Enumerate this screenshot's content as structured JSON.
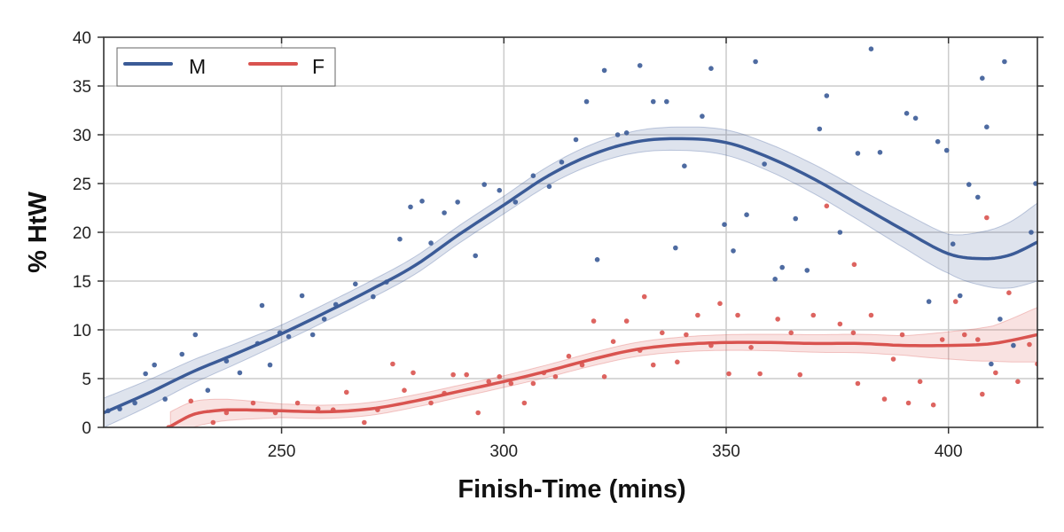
{
  "chart_data": {
    "type": "scatter",
    "title": "",
    "xlabel": "Finish-Time (mins)",
    "ylabel": "% HtW",
    "xlim": [
      210,
      420
    ],
    "ylim": [
      0,
      40
    ],
    "xticks": [
      250,
      300,
      350,
      400
    ],
    "yticks": [
      0,
      5,
      10,
      15,
      20,
      25,
      30,
      35,
      40
    ],
    "grid": true,
    "legend": {
      "placement": "top-left",
      "entries": [
        "M",
        "F"
      ]
    },
    "series": [
      {
        "name": "M",
        "color": "#3b5b97",
        "points": [
          [
            211,
            1.7
          ],
          [
            213.6,
            1.9
          ],
          [
            217,
            2.5
          ],
          [
            219.4,
            5.5
          ],
          [
            221.4,
            6.4
          ],
          [
            223.8,
            2.9
          ],
          [
            227.6,
            7.5
          ],
          [
            230.6,
            9.5
          ],
          [
            233.4,
            3.8
          ],
          [
            237.6,
            6.8
          ],
          [
            240.6,
            5.6
          ],
          [
            244.6,
            8.6
          ],
          [
            245.6,
            12.5
          ],
          [
            247.4,
            6.4
          ],
          [
            249.6,
            9.7
          ],
          [
            251.6,
            9.3
          ],
          [
            254.6,
            13.5
          ],
          [
            257,
            9.5
          ],
          [
            259.6,
            11.1
          ],
          [
            262.2,
            12.6
          ],
          [
            266.6,
            14.7
          ],
          [
            270.6,
            13.4
          ],
          [
            273.6,
            14.9
          ],
          [
            276.6,
            19.3
          ],
          [
            279,
            22.6
          ],
          [
            281.6,
            23.2
          ],
          [
            283.6,
            18.9
          ],
          [
            286.6,
            22
          ],
          [
            289.6,
            23.1
          ],
          [
            293.6,
            17.6
          ],
          [
            295.6,
            24.9
          ],
          [
            299,
            24.3
          ],
          [
            302.6,
            23.1
          ],
          [
            306.6,
            25.8
          ],
          [
            310.2,
            24.7
          ],
          [
            313,
            27.2
          ],
          [
            316.2,
            29.5
          ],
          [
            318.6,
            33.4
          ],
          [
            321,
            17.2
          ],
          [
            322.6,
            36.6
          ],
          [
            325.6,
            30
          ],
          [
            327.6,
            30.2
          ],
          [
            330.6,
            37.1
          ],
          [
            333.6,
            33.4
          ],
          [
            336.6,
            33.4
          ],
          [
            338.6,
            18.4
          ],
          [
            340.6,
            26.8
          ],
          [
            344.6,
            31.9
          ],
          [
            346.6,
            36.8
          ],
          [
            349.6,
            20.8
          ],
          [
            351.6,
            18.1
          ],
          [
            354.6,
            21.8
          ],
          [
            356.6,
            37.5
          ],
          [
            358.6,
            27
          ],
          [
            361,
            15.2
          ],
          [
            362.6,
            16.4
          ],
          [
            365.6,
            21.4
          ],
          [
            368.2,
            16.1
          ],
          [
            371,
            30.6
          ],
          [
            372.6,
            34
          ],
          [
            375.6,
            20
          ],
          [
            379.6,
            28.1
          ],
          [
            382.6,
            38.8
          ],
          [
            384.6,
            28.2
          ],
          [
            390.6,
            32.2
          ],
          [
            392.6,
            31.7
          ],
          [
            395.6,
            12.9
          ],
          [
            397.6,
            29.3
          ],
          [
            399.6,
            28.4
          ],
          [
            401,
            18.8
          ],
          [
            402.6,
            13.5
          ],
          [
            404.6,
            24.9
          ],
          [
            406.6,
            23.6
          ],
          [
            407.6,
            35.8
          ],
          [
            408.6,
            30.8
          ],
          [
            409.6,
            6.5
          ],
          [
            411.6,
            11.1
          ],
          [
            412.6,
            37.5
          ],
          [
            414.6,
            8.4
          ],
          [
            418.6,
            20
          ],
          [
            419.6,
            25
          ]
        ],
        "fit": [
          [
            210,
            1.5
          ],
          [
            220,
            3.5
          ],
          [
            230,
            5.7
          ],
          [
            240,
            7.6
          ],
          [
            250,
            9.6
          ],
          [
            260,
            11.8
          ],
          [
            270,
            14.1
          ],
          [
            280,
            16.6
          ],
          [
            290,
            19.8
          ],
          [
            300,
            22.8
          ],
          [
            310,
            25.8
          ],
          [
            320,
            28
          ],
          [
            330,
            29.3
          ],
          [
            340,
            29.6
          ],
          [
            350,
            29.2
          ],
          [
            360,
            27.6
          ],
          [
            370,
            25.4
          ],
          [
            380,
            22.8
          ],
          [
            390,
            20.2
          ],
          [
            400,
            17.8
          ],
          [
            408,
            17.3
          ],
          [
            414,
            17.7
          ],
          [
            420,
            19
          ]
        ],
        "ci_halfwidth": [
          [
            210,
            1.5
          ],
          [
            250,
            0.9
          ],
          [
            300,
            0.9
          ],
          [
            340,
            1.2
          ],
          [
            380,
            1.6
          ],
          [
            400,
            2
          ],
          [
            420,
            4
          ]
        ]
      },
      {
        "name": "F",
        "color": "#d9534f",
        "points": [
          [
            224.6,
            0
          ],
          [
            229.6,
            2.7
          ],
          [
            234.6,
            0.5
          ],
          [
            237.6,
            1.5
          ],
          [
            243.6,
            2.5
          ],
          [
            248.6,
            1.5
          ],
          [
            253.6,
            2.5
          ],
          [
            258.2,
            1.9
          ],
          [
            261.6,
            1.8
          ],
          [
            264.6,
            3.6
          ],
          [
            268.6,
            0.5
          ],
          [
            271.6,
            1.8
          ],
          [
            275,
            6.5
          ],
          [
            277.6,
            3.8
          ],
          [
            279.6,
            5.6
          ],
          [
            283.6,
            2.5
          ],
          [
            286.6,
            3.5
          ],
          [
            288.6,
            5.4
          ],
          [
            291.6,
            5.4
          ],
          [
            294.2,
            1.5
          ],
          [
            296.6,
            4.7
          ],
          [
            299,
            5.2
          ],
          [
            301.6,
            4.5
          ],
          [
            304.6,
            2.5
          ],
          [
            306.6,
            4.5
          ],
          [
            309,
            5.6
          ],
          [
            311.6,
            5.2
          ],
          [
            314.6,
            7.3
          ],
          [
            317.6,
            6.4
          ],
          [
            320.2,
            10.9
          ],
          [
            322.6,
            5.2
          ],
          [
            324.6,
            8.8
          ],
          [
            327.6,
            10.9
          ],
          [
            330.6,
            7.9
          ],
          [
            331.6,
            13.4
          ],
          [
            333.6,
            6.4
          ],
          [
            335.6,
            9.7
          ],
          [
            339,
            6.7
          ],
          [
            341,
            9.5
          ],
          [
            343.6,
            11.5
          ],
          [
            346.6,
            8.4
          ],
          [
            348.6,
            12.7
          ],
          [
            350.6,
            5.5
          ],
          [
            352.6,
            11.5
          ],
          [
            355.6,
            8.2
          ],
          [
            357.6,
            5.5
          ],
          [
            361.6,
            11.1
          ],
          [
            364.6,
            9.7
          ],
          [
            366.6,
            5.4
          ],
          [
            369.6,
            11.5
          ],
          [
            372.6,
            22.7
          ],
          [
            375.6,
            10.6
          ],
          [
            378.6,
            9.7
          ],
          [
            378.8,
            16.7
          ],
          [
            379.6,
            4.5
          ],
          [
            382.6,
            11.5
          ],
          [
            385.6,
            2.9
          ],
          [
            387.6,
            7
          ],
          [
            389.6,
            9.5
          ],
          [
            391,
            2.5
          ],
          [
            393.6,
            4.7
          ],
          [
            396.6,
            2.3
          ],
          [
            398.6,
            9
          ],
          [
            401.6,
            12.9
          ],
          [
            403.6,
            9.5
          ],
          [
            406.6,
            9
          ],
          [
            407.6,
            3.4
          ],
          [
            408.6,
            21.5
          ],
          [
            410.6,
            5.6
          ],
          [
            413.6,
            13.8
          ],
          [
            415.6,
            4.7
          ],
          [
            418.2,
            8.5
          ],
          [
            420,
            6.5
          ]
        ],
        "fit": [
          [
            225,
            0.1
          ],
          [
            230,
            1.3
          ],
          [
            235,
            1.7
          ],
          [
            240,
            1.8
          ],
          [
            250,
            1.7
          ],
          [
            260,
            1.6
          ],
          [
            270,
            1.9
          ],
          [
            280,
            2.7
          ],
          [
            290,
            3.7
          ],
          [
            300,
            4.7
          ],
          [
            310,
            5.8
          ],
          [
            320,
            7
          ],
          [
            330,
            8
          ],
          [
            340,
            8.5
          ],
          [
            350,
            8.7
          ],
          [
            360,
            8.7
          ],
          [
            370,
            8.6
          ],
          [
            380,
            8.6
          ],
          [
            390,
            8.4
          ],
          [
            400,
            8.4
          ],
          [
            410,
            8.6
          ],
          [
            420,
            9.5
          ]
        ],
        "ci_halfwidth": [
          [
            225,
            1.5
          ],
          [
            250,
            0.7
          ],
          [
            300,
            0.6
          ],
          [
            350,
            0.8
          ],
          [
            390,
            1
          ],
          [
            410,
            1.8
          ],
          [
            420,
            2.8
          ]
        ]
      }
    ]
  }
}
